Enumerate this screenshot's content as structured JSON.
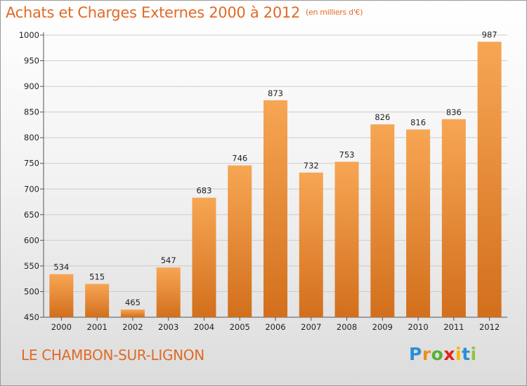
{
  "header": {
    "title": "Achats et Charges Externes 2000 à 2012",
    "unit": "(en milliers d'€)"
  },
  "footer": {
    "town": "LE CHAMBON-SUR-LIGNON",
    "logo_letters": [
      "P",
      "r",
      "o",
      "x",
      "i",
      "t",
      "i"
    ],
    "logo_colors": [
      "#2c8fd6",
      "#f28c1a",
      "#58b031",
      "#e2231a",
      "#f5b800",
      "#2c8fd6",
      "#8cc63f"
    ]
  },
  "colors": {
    "accent": "#e06a26",
    "bar_top": "#f7a654",
    "bar_bottom": "#d26f1c",
    "grid": "#cccccc"
  },
  "chart_data": {
    "type": "bar",
    "categories": [
      "2000",
      "2001",
      "2002",
      "2003",
      "2004",
      "2005",
      "2006",
      "2007",
      "2008",
      "2009",
      "2010",
      "2011",
      "2012"
    ],
    "values": [
      534,
      515,
      465,
      547,
      683,
      746,
      873,
      732,
      753,
      826,
      816,
      836,
      987
    ],
    "ylim": [
      450,
      1000
    ],
    "yticks": [
      450,
      500,
      550,
      600,
      650,
      700,
      750,
      800,
      850,
      900,
      950,
      1000
    ],
    "grid": true
  }
}
